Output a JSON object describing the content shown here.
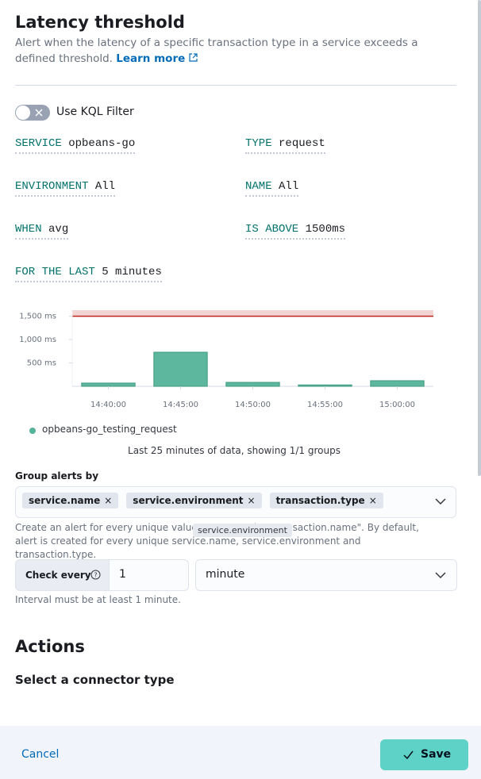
{
  "header": {
    "title": "Latency threshold",
    "description": "Alert when the latency of a specific transaction type in a service exceeds a defined threshold.",
    "learn_more": "Learn more"
  },
  "kql_toggle": "Use KQL Filter",
  "expressions": [
    {
      "key": "SERVICE",
      "value": "opbeans-go"
    },
    {
      "key": "TYPE",
      "value": "request"
    },
    {
      "key": "ENVIRONMENT",
      "value": "All"
    },
    {
      "key": "NAME",
      "value": "All"
    },
    {
      "key": "WHEN",
      "value": "avg"
    },
    {
      "key": "IS ABOVE",
      "value": "1500ms"
    },
    {
      "key": "FOR THE LAST",
      "value": "5 minutes"
    }
  ],
  "chart": {
    "type": "bar",
    "categories": [
      "14:40:00",
      "14:45:00",
      "14:50:00",
      "14:55:00",
      "15:00:00"
    ],
    "values": [
      70,
      730,
      85,
      30,
      120
    ],
    "color": "#54b399",
    "threshold": 1500,
    "threshold_color": "#bd271e",
    "ylim": [
      0,
      1630
    ],
    "yticks": [
      {
        "value": 500,
        "label": "500 ms"
      },
      {
        "value": 1000,
        "label": "1,000 ms"
      },
      {
        "value": 1500,
        "label": "1,500 ms"
      }
    ],
    "series_name": "opbeans-go_testing_request",
    "caption": "Last 25 minutes of data, showing 1/1 groups"
  },
  "group_by": {
    "label": "Group alerts by",
    "chips": [
      "service.name",
      "service.environment",
      "transaction.type"
    ],
    "help": "Create an alert for every unique value. For example: \"transaction.name\". By default, alert is created for every unique service.name, service.environment and transaction.type.",
    "tooltip": "service.environment"
  },
  "check_every": {
    "label": "Check every",
    "value": "1",
    "unit": "minute",
    "help": "Interval must be at least 1 minute."
  },
  "actions": {
    "title": "Actions",
    "subtitle": "Select a connector type"
  },
  "footer": {
    "cancel": "Cancel",
    "save": "Save"
  }
}
